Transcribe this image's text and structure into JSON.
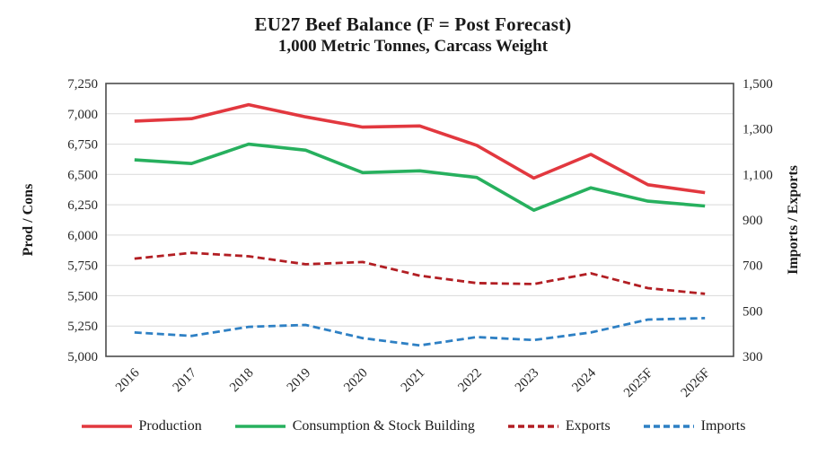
{
  "title": "EU27 Beef Balance (F = Post Forecast)",
  "subtitle": "1,000 Metric Tonnes, Carcass Weight",
  "left_axis": {
    "label": "Prod / Cons",
    "min": 5000,
    "max": 7250,
    "step": 250,
    "tick_values": [
      5000,
      5250,
      5500,
      5750,
      6000,
      6250,
      6500,
      6750,
      7000,
      7250
    ],
    "tick_labels": [
      "5,000",
      "5,250",
      "5,500",
      "5,750",
      "6,000",
      "6,250",
      "6,500",
      "6,750",
      "7,000",
      "7,250"
    ]
  },
  "right_axis": {
    "label": "Imports / Exports",
    "min": 300,
    "max": 1500,
    "step": 200,
    "tick_values": [
      300,
      500,
      700,
      900,
      1100,
      1300,
      1500
    ],
    "tick_labels": [
      "300",
      "500",
      "700",
      "900",
      "1,100",
      "1,300",
      "1,500"
    ]
  },
  "chart_data": {
    "type": "line",
    "title": "EU27 Beef Balance (F = Post Forecast)",
    "subtitle": "1,000 Metric Tonnes, Carcass Weight",
    "xlabel": "",
    "ylabel_left": "Prod / Cons",
    "ylabel_right": "Imports / Exports",
    "ylim_left": [
      5000,
      7250
    ],
    "ylim_right": [
      300,
      1500
    ],
    "grid": "horizontal",
    "legend_position": "bottom",
    "categories": [
      "2016",
      "2017",
      "2018",
      "2019",
      "2020",
      "2021",
      "2022",
      "2023",
      "2024",
      "2025F",
      "2026F"
    ],
    "series": [
      {
        "name": "Production",
        "axis": "left",
        "style": "solid",
        "color": "#e2383f",
        "values": [
          6940,
          6960,
          7075,
          6975,
          6890,
          6900,
          6740,
          6470,
          6665,
          6415,
          6350
        ]
      },
      {
        "name": "Consumption & Stock Building",
        "axis": "left",
        "style": "solid",
        "color": "#27b05e",
        "values": [
          6620,
          6590,
          6750,
          6700,
          6515,
          6530,
          6475,
          6205,
          6390,
          6280,
          6240
        ]
      },
      {
        "name": "Exports",
        "axis": "right",
        "style": "dashed",
        "color": "#b21e23",
        "values": [
          730,
          755,
          740,
          705,
          715,
          655,
          622,
          618,
          665,
          600,
          575
        ]
      },
      {
        "name": "Imports",
        "axis": "right",
        "style": "dashed",
        "color": "#2e80c4",
        "values": [
          405,
          390,
          430,
          438,
          380,
          348,
          385,
          372,
          405,
          462,
          468
        ]
      }
    ]
  },
  "frame_color": "#4d4d4d",
  "gridline_color": "#d9d9d9",
  "tick_text_color": "#262626"
}
